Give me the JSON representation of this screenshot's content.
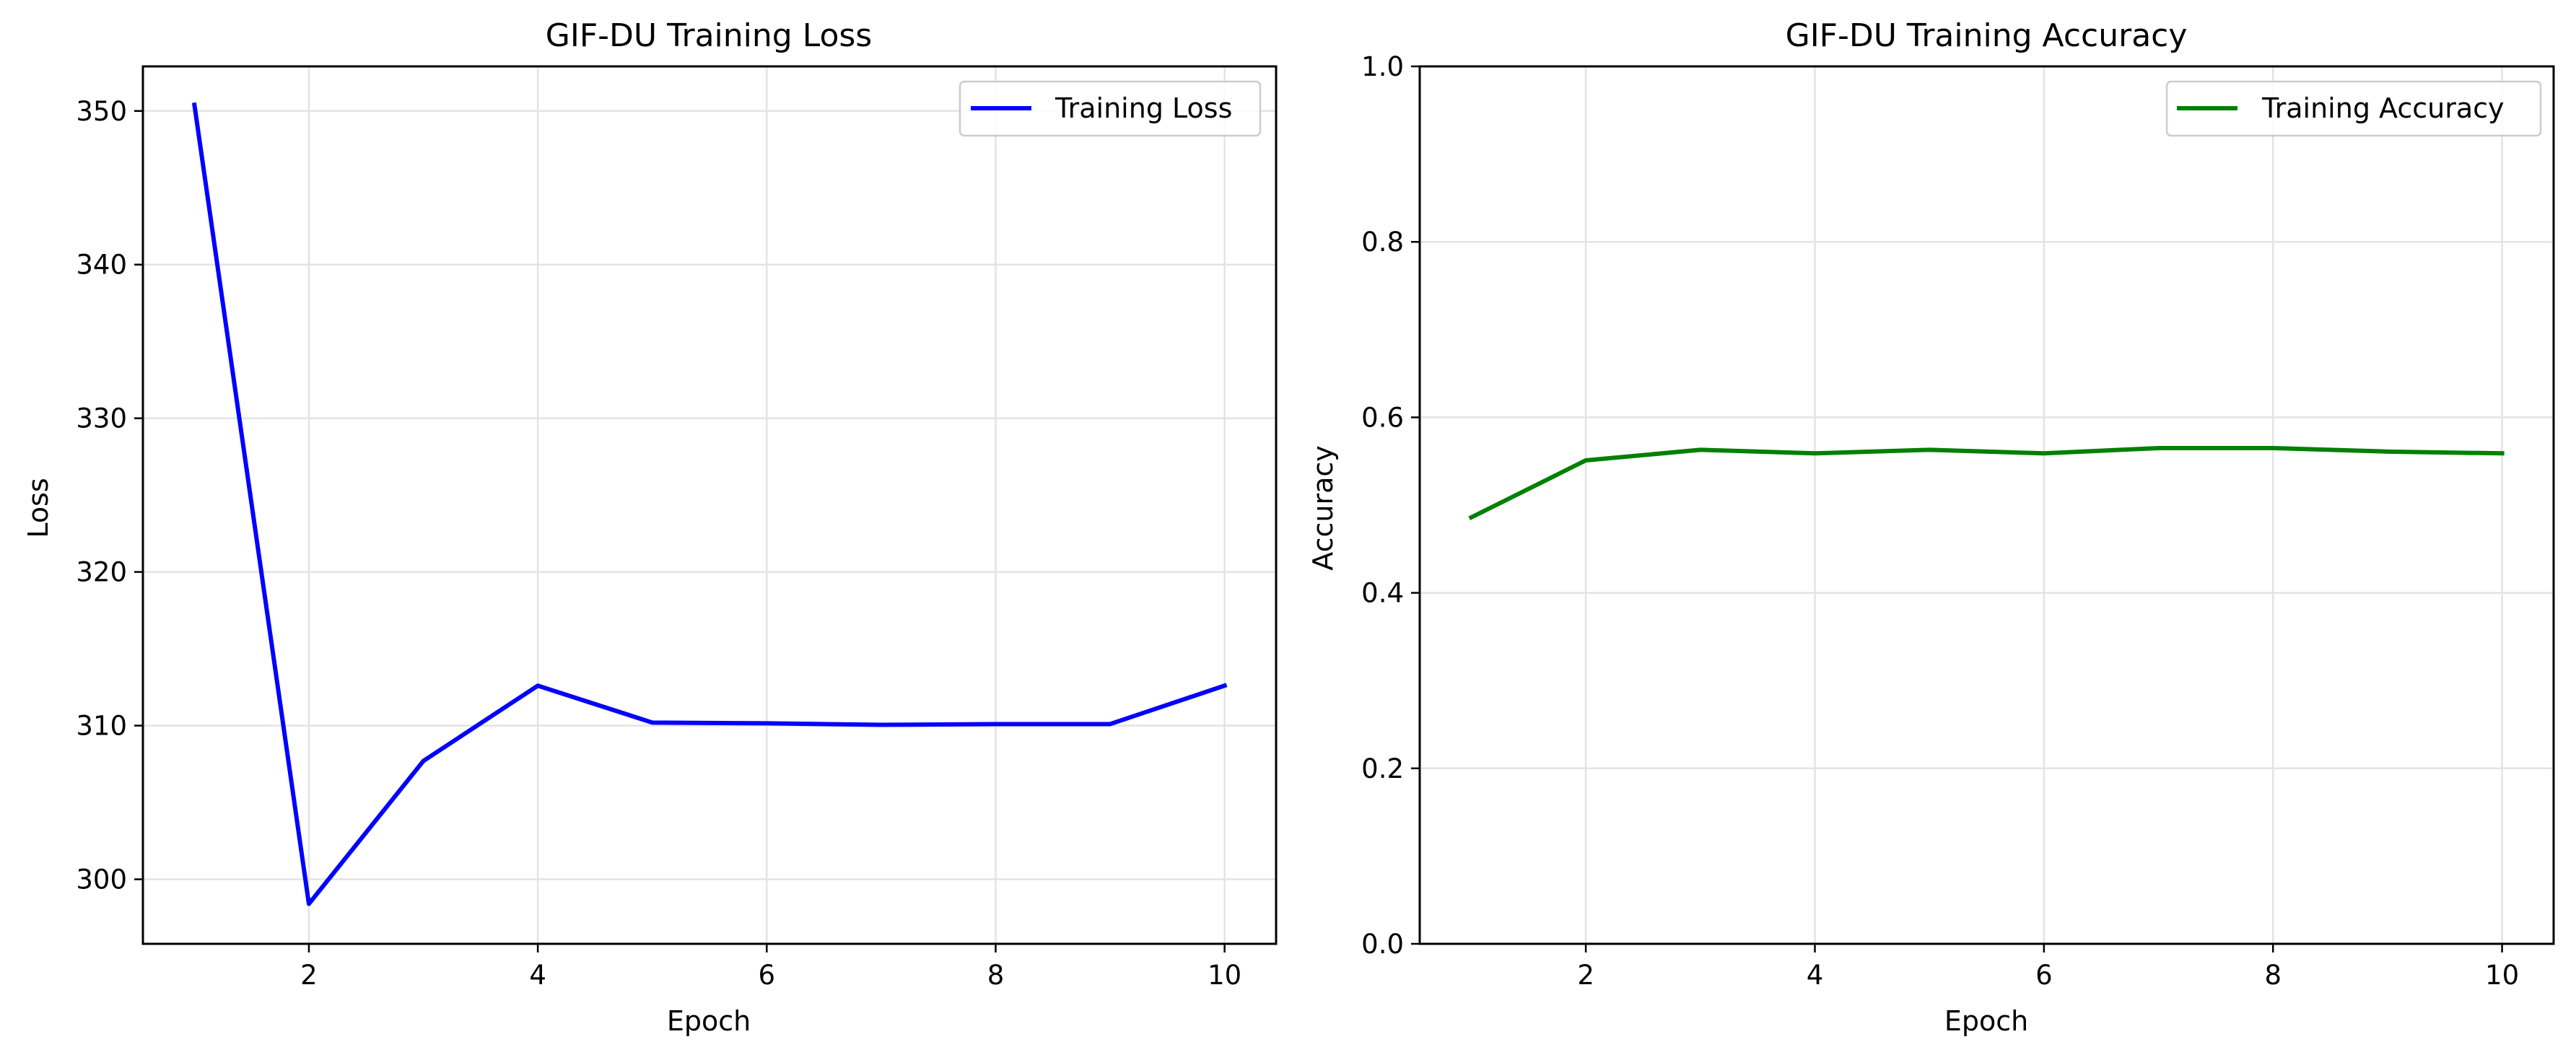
{
  "chart_data": [
    {
      "type": "line",
      "title": "GIF-DU Training Loss",
      "xlabel": "Epoch",
      "ylabel": "Loss",
      "xlim": [
        0.55,
        10.45
      ],
      "ylim": [
        295.8,
        352.9
      ],
      "xticks": [
        "2",
        "4",
        "6",
        "8",
        "10"
      ],
      "yticks": [
        "300",
        "310",
        "320",
        "330",
        "340",
        "350"
      ],
      "grid": true,
      "legend_position": "top-right",
      "series": [
        {
          "name": "Training Loss",
          "color": "#0000ff",
          "x": [
            1,
            2,
            3,
            4,
            5,
            6,
            7,
            8,
            9,
            10
          ],
          "y": [
            350.4,
            298.4,
            307.7,
            312.6,
            310.2,
            310.15,
            310.05,
            310.1,
            310.1,
            312.6
          ]
        }
      ]
    },
    {
      "type": "line",
      "title": "GIF-DU Training Accuracy",
      "xlabel": "Epoch",
      "ylabel": "Accuracy",
      "xlim": [
        0.55,
        10.45
      ],
      "ylim": [
        0.0,
        1.0
      ],
      "xticks": [
        "2",
        "4",
        "6",
        "8",
        "10"
      ],
      "yticks": [
        "0.0",
        "0.2",
        "0.4",
        "0.6",
        "0.8",
        "1.0"
      ],
      "grid": true,
      "legend_position": "top-right",
      "series": [
        {
          "name": "Training Accuracy",
          "color": "#008000",
          "x": [
            1,
            2,
            3,
            4,
            5,
            6,
            7,
            8,
            9,
            10
          ],
          "y": [
            0.486,
            0.551,
            0.563,
            0.559,
            0.563,
            0.559,
            0.565,
            0.565,
            0.561,
            0.559
          ]
        }
      ]
    }
  ]
}
